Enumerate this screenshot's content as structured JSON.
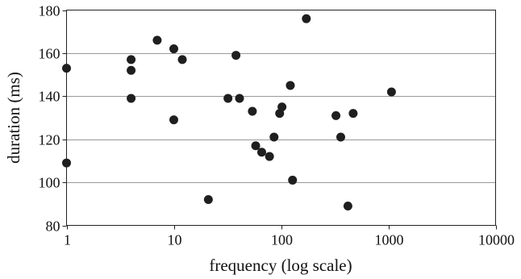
{
  "chart_data": {
    "type": "scatter",
    "title": "",
    "xlabel": "frequency (log scale)",
    "ylabel": "duration (ms)",
    "x_scale": "log",
    "xlim": [
      1,
      10000
    ],
    "ylim": [
      80,
      180
    ],
    "x_ticks": [
      "1",
      "10",
      "100",
      "1000",
      "10000"
    ],
    "y_ticks": [
      "80",
      "100",
      "120",
      "140",
      "160",
      "180"
    ],
    "grid": "horizontal",
    "legend": "none",
    "point_color": "#1f1f1f",
    "points": [
      {
        "x": 1,
        "y": 153
      },
      {
        "x": 1,
        "y": 109
      },
      {
        "x": 4,
        "y": 157
      },
      {
        "x": 4,
        "y": 152
      },
      {
        "x": 4,
        "y": 139
      },
      {
        "x": 7,
        "y": 166
      },
      {
        "x": 10,
        "y": 162
      },
      {
        "x": 10,
        "y": 129
      },
      {
        "x": 12,
        "y": 157
      },
      {
        "x": 21,
        "y": 92
      },
      {
        "x": 32,
        "y": 139
      },
      {
        "x": 38,
        "y": 159
      },
      {
        "x": 41,
        "y": 139
      },
      {
        "x": 54,
        "y": 133
      },
      {
        "x": 58,
        "y": 117
      },
      {
        "x": 66,
        "y": 114
      },
      {
        "x": 78,
        "y": 112
      },
      {
        "x": 86,
        "y": 121
      },
      {
        "x": 97,
        "y": 132
      },
      {
        "x": 102,
        "y": 135
      },
      {
        "x": 122,
        "y": 145
      },
      {
        "x": 128,
        "y": 101
      },
      {
        "x": 172,
        "y": 176
      },
      {
        "x": 325,
        "y": 131
      },
      {
        "x": 360,
        "y": 121
      },
      {
        "x": 420,
        "y": 89
      },
      {
        "x": 470,
        "y": 132
      },
      {
        "x": 1070,
        "y": 142
      }
    ]
  }
}
